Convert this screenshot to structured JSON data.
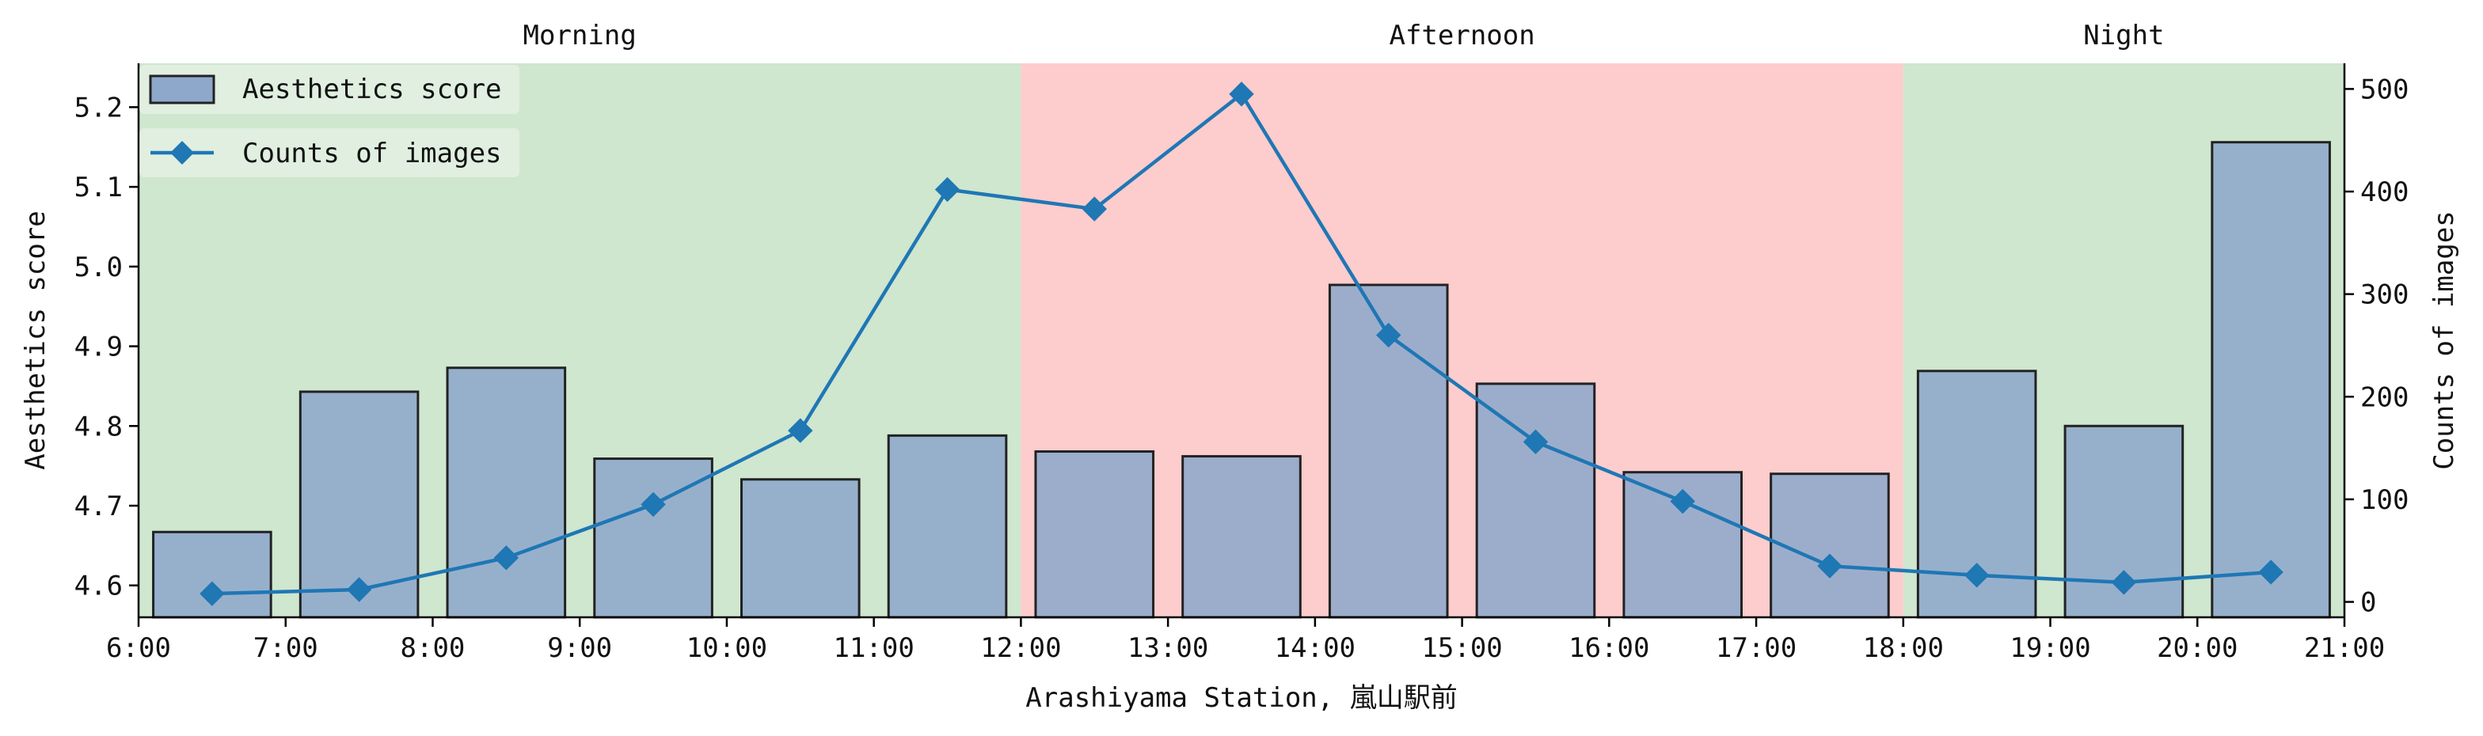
{
  "chart_data": {
    "type": "bar+line",
    "title": "",
    "xlabel": "Arashiyama Station, 嵐山駅前",
    "x_tick_labels": [
      "6:00",
      "7:00",
      "8:00",
      "9:00",
      "10:00",
      "11:00",
      "12:00",
      "13:00",
      "14:00",
      "15:00",
      "16:00",
      "17:00",
      "18:00",
      "19:00",
      "20:00",
      "21:00"
    ],
    "x_range": [
      6,
      21
    ],
    "periods": [
      {
        "label": "Morning",
        "start": 6,
        "end": 12,
        "color": "#cfe6cf"
      },
      {
        "label": "Afternoon",
        "start": 12,
        "end": 18,
        "color": "#fdcccd"
      },
      {
        "label": "Night",
        "start": 18,
        "end": 21,
        "color": "#cfe6cf"
      }
    ],
    "left_axis": {
      "label": "Aesthetics score",
      "ylim": [
        4.56,
        5.255
      ],
      "ticks": [
        4.6,
        4.7,
        4.8,
        4.9,
        5.0,
        5.1,
        5.2
      ],
      "tick_labels": [
        "4.6",
        "4.7",
        "4.8",
        "4.9",
        "5.0",
        "5.1",
        "5.2"
      ]
    },
    "right_axis": {
      "label": "Counts of images",
      "ylim": [
        -15,
        525
      ],
      "ticks": [
        0,
        100,
        200,
        300,
        400,
        500
      ],
      "tick_labels": [
        "0",
        "100",
        "200",
        "300",
        "400",
        "500"
      ]
    },
    "series": [
      {
        "name": "Aesthetics score",
        "kind": "bar",
        "axis": "left",
        "color": "#8ea8cc",
        "x": [
          6.5,
          7.5,
          8.5,
          9.5,
          10.5,
          11.5,
          12.5,
          13.5,
          14.5,
          15.5,
          16.5,
          17.5,
          18.5,
          19.5,
          20.5
        ],
        "values": [
          4.667,
          4.843,
          4.873,
          4.759,
          4.733,
          4.788,
          4.768,
          4.762,
          4.977,
          4.853,
          4.742,
          4.74,
          4.869,
          4.8,
          5.156
        ]
      },
      {
        "name": "Counts of images",
        "kind": "line",
        "axis": "right",
        "color": "#1f77b4",
        "marker": "diamond",
        "x": [
          6.5,
          7.5,
          8.5,
          9.5,
          10.5,
          11.5,
          12.5,
          13.5,
          14.5,
          15.5,
          16.5,
          17.5,
          18.5,
          19.5,
          20.5
        ],
        "values": [
          8,
          12,
          43,
          95,
          167,
          402,
          383,
          495,
          260,
          156,
          98,
          35,
          26,
          19,
          29
        ]
      }
    ],
    "legend": {
      "position": "top-left"
    },
    "grid": false
  }
}
